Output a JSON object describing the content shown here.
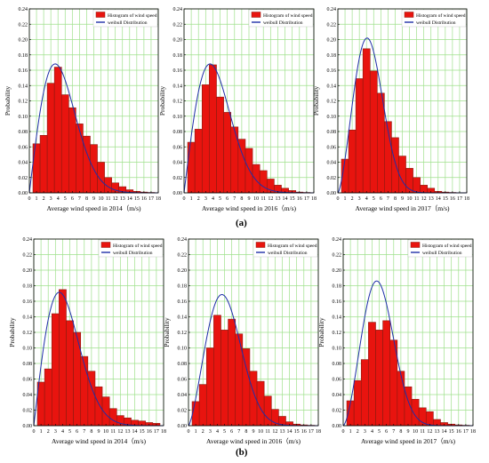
{
  "figure": {
    "panel_labels": [
      "(a)",
      "(b)"
    ]
  },
  "colors": {
    "bar_fill": "#e8140f",
    "bar_stroke": "#8b1a10",
    "weibull_line": "#1f2fa8",
    "grid": "#9fe08c",
    "axis": "#000000",
    "bar_highlight": "#f7a3c0"
  },
  "chart_data": [
    {
      "type": "bar",
      "row": "a",
      "xlabel": "Average wind speed in 2014（m/s)",
      "ylabel": "Probability",
      "xticks": [
        "0",
        "1",
        "2",
        "3",
        "4",
        "5",
        "6",
        "7",
        "8",
        "9",
        "10",
        "11",
        "12",
        "13",
        "14",
        "15",
        "16",
        "17",
        "18"
      ],
      "yticks": [
        "0.00",
        "0.02",
        "0.04",
        "0.06",
        "0.08",
        "0.10",
        "0.12",
        "0.14",
        "0.16",
        "0.18",
        "0.20",
        "0.22",
        "0.24"
      ],
      "xlim": [
        0,
        18
      ],
      "ylim": [
        0,
        0.24
      ],
      "grid": true,
      "legend_position": "top-right",
      "series": [
        {
          "name": "Histogram of wind speed",
          "kind": "bar",
          "bin_width": 1,
          "x": [
            1,
            2,
            3,
            4,
            5,
            6,
            7,
            8,
            9,
            10,
            11,
            12,
            13,
            14,
            15,
            16,
            17
          ],
          "values": [
            0.064,
            0.075,
            0.143,
            0.164,
            0.128,
            0.111,
            0.09,
            0.074,
            0.063,
            0.04,
            0.02,
            0.013,
            0.008,
            0.004,
            0.002,
            0.001,
            0.0005
          ]
        },
        {
          "name": "weibull Distribution",
          "kind": "weibull",
          "k": 2.0,
          "c": 5.1
        }
      ]
    },
    {
      "type": "bar",
      "row": "a",
      "xlabel": "Average wind speed in 2016（m/s)",
      "ylabel": "Probability",
      "xticks": [
        "0",
        "1",
        "2",
        "3",
        "4",
        "5",
        "6",
        "7",
        "8",
        "9",
        "10",
        "11",
        "12",
        "13",
        "14",
        "15",
        "16",
        "17",
        "18"
      ],
      "yticks": [
        "0.00",
        "0.02",
        "0.04",
        "0.06",
        "0.08",
        "0.10",
        "0.12",
        "0.14",
        "0.16",
        "0.18",
        "0.20",
        "0.22",
        "0.24"
      ],
      "xlim": [
        0,
        18
      ],
      "ylim": [
        0,
        0.24
      ],
      "grid": true,
      "legend_position": "top-right",
      "series": [
        {
          "name": "Histogram of wind speed",
          "kind": "bar",
          "bin_width": 1,
          "x": [
            1,
            2,
            3,
            4,
            5,
            6,
            7,
            8,
            9,
            10,
            11,
            12,
            13,
            14,
            15,
            16,
            17
          ],
          "values": [
            0.066,
            0.083,
            0.141,
            0.167,
            0.125,
            0.105,
            0.086,
            0.07,
            0.058,
            0.037,
            0.029,
            0.018,
            0.01,
            0.006,
            0.003,
            0.001,
            0.0005
          ]
        },
        {
          "name": "weibull Distribution",
          "kind": "weibull",
          "k": 2.0,
          "c": 5.1
        }
      ]
    },
    {
      "type": "bar",
      "row": "a",
      "xlabel": "Average wind speed in 2017（m/s)",
      "ylabel": "Probability",
      "xticks": [
        "0",
        "1",
        "2",
        "3",
        "4",
        "5",
        "6",
        "7",
        "8",
        "9",
        "10",
        "11",
        "12",
        "13",
        "14",
        "15",
        "16",
        "17",
        "18"
      ],
      "yticks": [
        "0.00",
        "0.02",
        "0.04",
        "0.06",
        "0.08",
        "0.10",
        "0.12",
        "0.14",
        "0.16",
        "0.18",
        "0.20",
        "0.22",
        "0.24"
      ],
      "xlim": [
        0,
        18
      ],
      "ylim": [
        0,
        0.24
      ],
      "grid": true,
      "legend_position": "top-right",
      "series": [
        {
          "name": "Histogram of wind speed",
          "kind": "bar",
          "bin_width": 1,
          "x": [
            1,
            2,
            3,
            4,
            5,
            6,
            7,
            8,
            9,
            10,
            11,
            12,
            13,
            14,
            15,
            16,
            17
          ],
          "values": [
            0.044,
            0.082,
            0.149,
            0.188,
            0.159,
            0.13,
            0.093,
            0.072,
            0.048,
            0.032,
            0.02,
            0.01,
            0.006,
            0.002,
            0.001,
            0.0005,
            0.0002
          ]
        },
        {
          "name": "weibull Distribution",
          "kind": "weibull",
          "k": 2.5,
          "c": 5.0
        }
      ]
    },
    {
      "type": "bar",
      "row": "b",
      "xlabel": "Average wind speed in 2014（m/s)",
      "ylabel": "Probability",
      "xticks": [
        "0",
        "1",
        "2",
        "3",
        "4",
        "5",
        "6",
        "7",
        "8",
        "9",
        "10",
        "11",
        "12",
        "13",
        "14",
        "15",
        "16",
        "17",
        "18"
      ],
      "yticks": [
        "0.00",
        "0.02",
        "0.04",
        "0.06",
        "0.08",
        "0.10",
        "0.12",
        "0.14",
        "0.16",
        "0.18",
        "0.20",
        "0.22",
        "0.24"
      ],
      "xlim": [
        0,
        18
      ],
      "ylim": [
        0,
        0.24
      ],
      "grid": true,
      "legend_position": "top-right",
      "series": [
        {
          "name": "Histogram of wind speed",
          "kind": "bar",
          "bin_width": 1,
          "x": [
            1,
            2,
            3,
            4,
            5,
            6,
            7,
            8,
            9,
            10,
            11,
            12,
            13,
            14,
            15,
            16,
            17
          ],
          "values": [
            0.056,
            0.073,
            0.144,
            0.175,
            0.135,
            0.12,
            0.089,
            0.07,
            0.05,
            0.037,
            0.022,
            0.013,
            0.01,
            0.007,
            0.006,
            0.004,
            0.003
          ]
        },
        {
          "name": "weibull Distribution",
          "kind": "weibull",
          "k": 2.0,
          "c": 5.0
        }
      ]
    },
    {
      "type": "bar",
      "row": "b",
      "xlabel": "Average wind speed in 2016（m/s)",
      "ylabel": "Probability",
      "xticks": [
        "0",
        "1",
        "2",
        "3",
        "4",
        "5",
        "6",
        "7",
        "8",
        "9",
        "10",
        "11",
        "12",
        "13",
        "14",
        "15",
        "16",
        "17",
        "18"
      ],
      "yticks": [
        "0.00",
        "0.02",
        "0.04",
        "0.06",
        "0.08",
        "0.10",
        "0.12",
        "0.14",
        "0.16",
        "0.18",
        "0.20",
        "0.22",
        "0.24"
      ],
      "xlim": [
        0,
        18
      ],
      "ylim": [
        0,
        0.24
      ],
      "grid": true,
      "legend_position": "top-right",
      "series": [
        {
          "name": "Histogram of wind speed",
          "kind": "bar",
          "bin_width": 1,
          "x": [
            1,
            2,
            3,
            4,
            5,
            6,
            7,
            8,
            9,
            10,
            11,
            12,
            13,
            14,
            15,
            16,
            17
          ],
          "values": [
            0.031,
            0.053,
            0.1,
            0.142,
            0.123,
            0.137,
            0.118,
            0.099,
            0.07,
            0.057,
            0.038,
            0.021,
            0.012,
            0.005,
            0.002,
            0.001,
            0.0005
          ]
        },
        {
          "name": "weibull Distribution",
          "kind": "weibull",
          "k": 2.4,
          "c": 5.8
        }
      ]
    },
    {
      "type": "bar",
      "row": "b",
      "xlabel": "Average wind speed in 2017（m/s)",
      "ylabel": "Probability",
      "xticks": [
        "0",
        "1",
        "2",
        "3",
        "4",
        "5",
        "6",
        "7",
        "8",
        "9",
        "10",
        "11",
        "12",
        "13",
        "14",
        "15",
        "16",
        "17",
        "18"
      ],
      "yticks": [
        "0.00",
        "0.02",
        "0.04",
        "0.06",
        "0.08",
        "0.10",
        "0.12",
        "0.14",
        "0.16",
        "0.18",
        "0.20",
        "0.22",
        "0.24"
      ],
      "xlim": [
        0,
        18
      ],
      "ylim": [
        0,
        0.24
      ],
      "grid": true,
      "legend_position": "top-right",
      "series": [
        {
          "name": "Histogram of wind speed",
          "kind": "bar",
          "bin_width": 1,
          "x": [
            1,
            2,
            3,
            4,
            5,
            6,
            7,
            8,
            9,
            10,
            11,
            12,
            13,
            14,
            15,
            16,
            17
          ],
          "values": [
            0.032,
            0.058,
            0.085,
            0.133,
            0.123,
            0.135,
            0.11,
            0.07,
            0.05,
            0.034,
            0.023,
            0.018,
            0.008,
            0.004,
            0.002,
            0.001,
            0.0005
          ]
        },
        {
          "name": "weibull Distribution",
          "kind": "weibull",
          "k": 2.6,
          "c": 5.6
        }
      ]
    }
  ]
}
